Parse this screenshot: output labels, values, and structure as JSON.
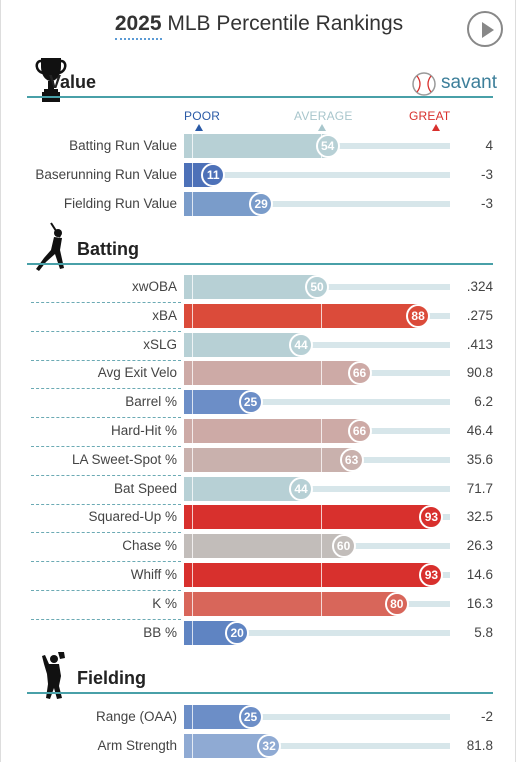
{
  "header": {
    "year": "2025",
    "title_rest": " MLB Percentile Rankings"
  },
  "brand": {
    "name": "savant"
  },
  "scale": {
    "poor": "POOR",
    "average": "AVERAGE",
    "great": "GREAT"
  },
  "colors": {
    "poor": "#2a5aa6",
    "average": "#a8c6cc",
    "great": "#d8302d",
    "section_line": "#48a0a8"
  },
  "chart_data": {
    "type": "bar",
    "title": "2025 MLB Percentile Rankings",
    "xlim": [
      0,
      100
    ],
    "scale_labels": [
      "POOR",
      "AVERAGE",
      "GREAT"
    ],
    "sections": [
      {
        "name": "Value",
        "icon": "trophy-icon",
        "metrics": [
          {
            "label": "Batting Run Value",
            "percentile": 54,
            "value": "4",
            "color": "#b7d0d5"
          },
          {
            "label": "Baserunning Run Value",
            "percentile": 11,
            "value": "-3",
            "color": "#4d71b8"
          },
          {
            "label": "Fielding Run Value",
            "percentile": 29,
            "value": "-3",
            "color": "#7a9cca"
          }
        ]
      },
      {
        "name": "Batting",
        "icon": "batter-icon",
        "metrics": [
          {
            "label": "xwOBA",
            "percentile": 50,
            "value": ".324",
            "color": "#b7d0d5"
          },
          {
            "label": "xBA",
            "percentile": 88,
            "value": ".275",
            "color": "#db4b3a"
          },
          {
            "label": "xSLG",
            "percentile": 44,
            "value": ".413",
            "color": "#b7d0d5"
          },
          {
            "label": "Avg Exit Velo",
            "percentile": 66,
            "value": "90.8",
            "color": "#cdaaa6"
          },
          {
            "label": "Barrel %",
            "percentile": 25,
            "value": "6.2",
            "color": "#6c8ec7"
          },
          {
            "label": "Hard-Hit %",
            "percentile": 66,
            "value": "46.4",
            "color": "#cdaaa6"
          },
          {
            "label": "LA Sweet-Spot %",
            "percentile": 63,
            "value": "35.6",
            "color": "#c9b1ad"
          },
          {
            "label": "Bat Speed",
            "percentile": 44,
            "value": "71.7",
            "color": "#b7d0d5"
          },
          {
            "label": "Squared-Up %",
            "percentile": 93,
            "value": "32.5",
            "color": "#d8302d"
          },
          {
            "label": "Chase %",
            "percentile": 60,
            "value": "26.3",
            "color": "#c2bdba"
          },
          {
            "label": "Whiff %",
            "percentile": 93,
            "value": "14.6",
            "color": "#d8302d"
          },
          {
            "label": "K %",
            "percentile": 80,
            "value": "16.3",
            "color": "#d8665a"
          },
          {
            "label": "BB %",
            "percentile": 20,
            "value": "5.8",
            "color": "#5f84c2"
          }
        ]
      },
      {
        "name": "Fielding",
        "icon": "fielder-icon",
        "metrics": [
          {
            "label": "Range (OAA)",
            "percentile": 25,
            "value": "-2",
            "color": "#6c8ec7"
          },
          {
            "label": "Arm Strength",
            "percentile": 32,
            "value": "81.8",
            "color": "#8faad3"
          }
        ]
      }
    ]
  }
}
